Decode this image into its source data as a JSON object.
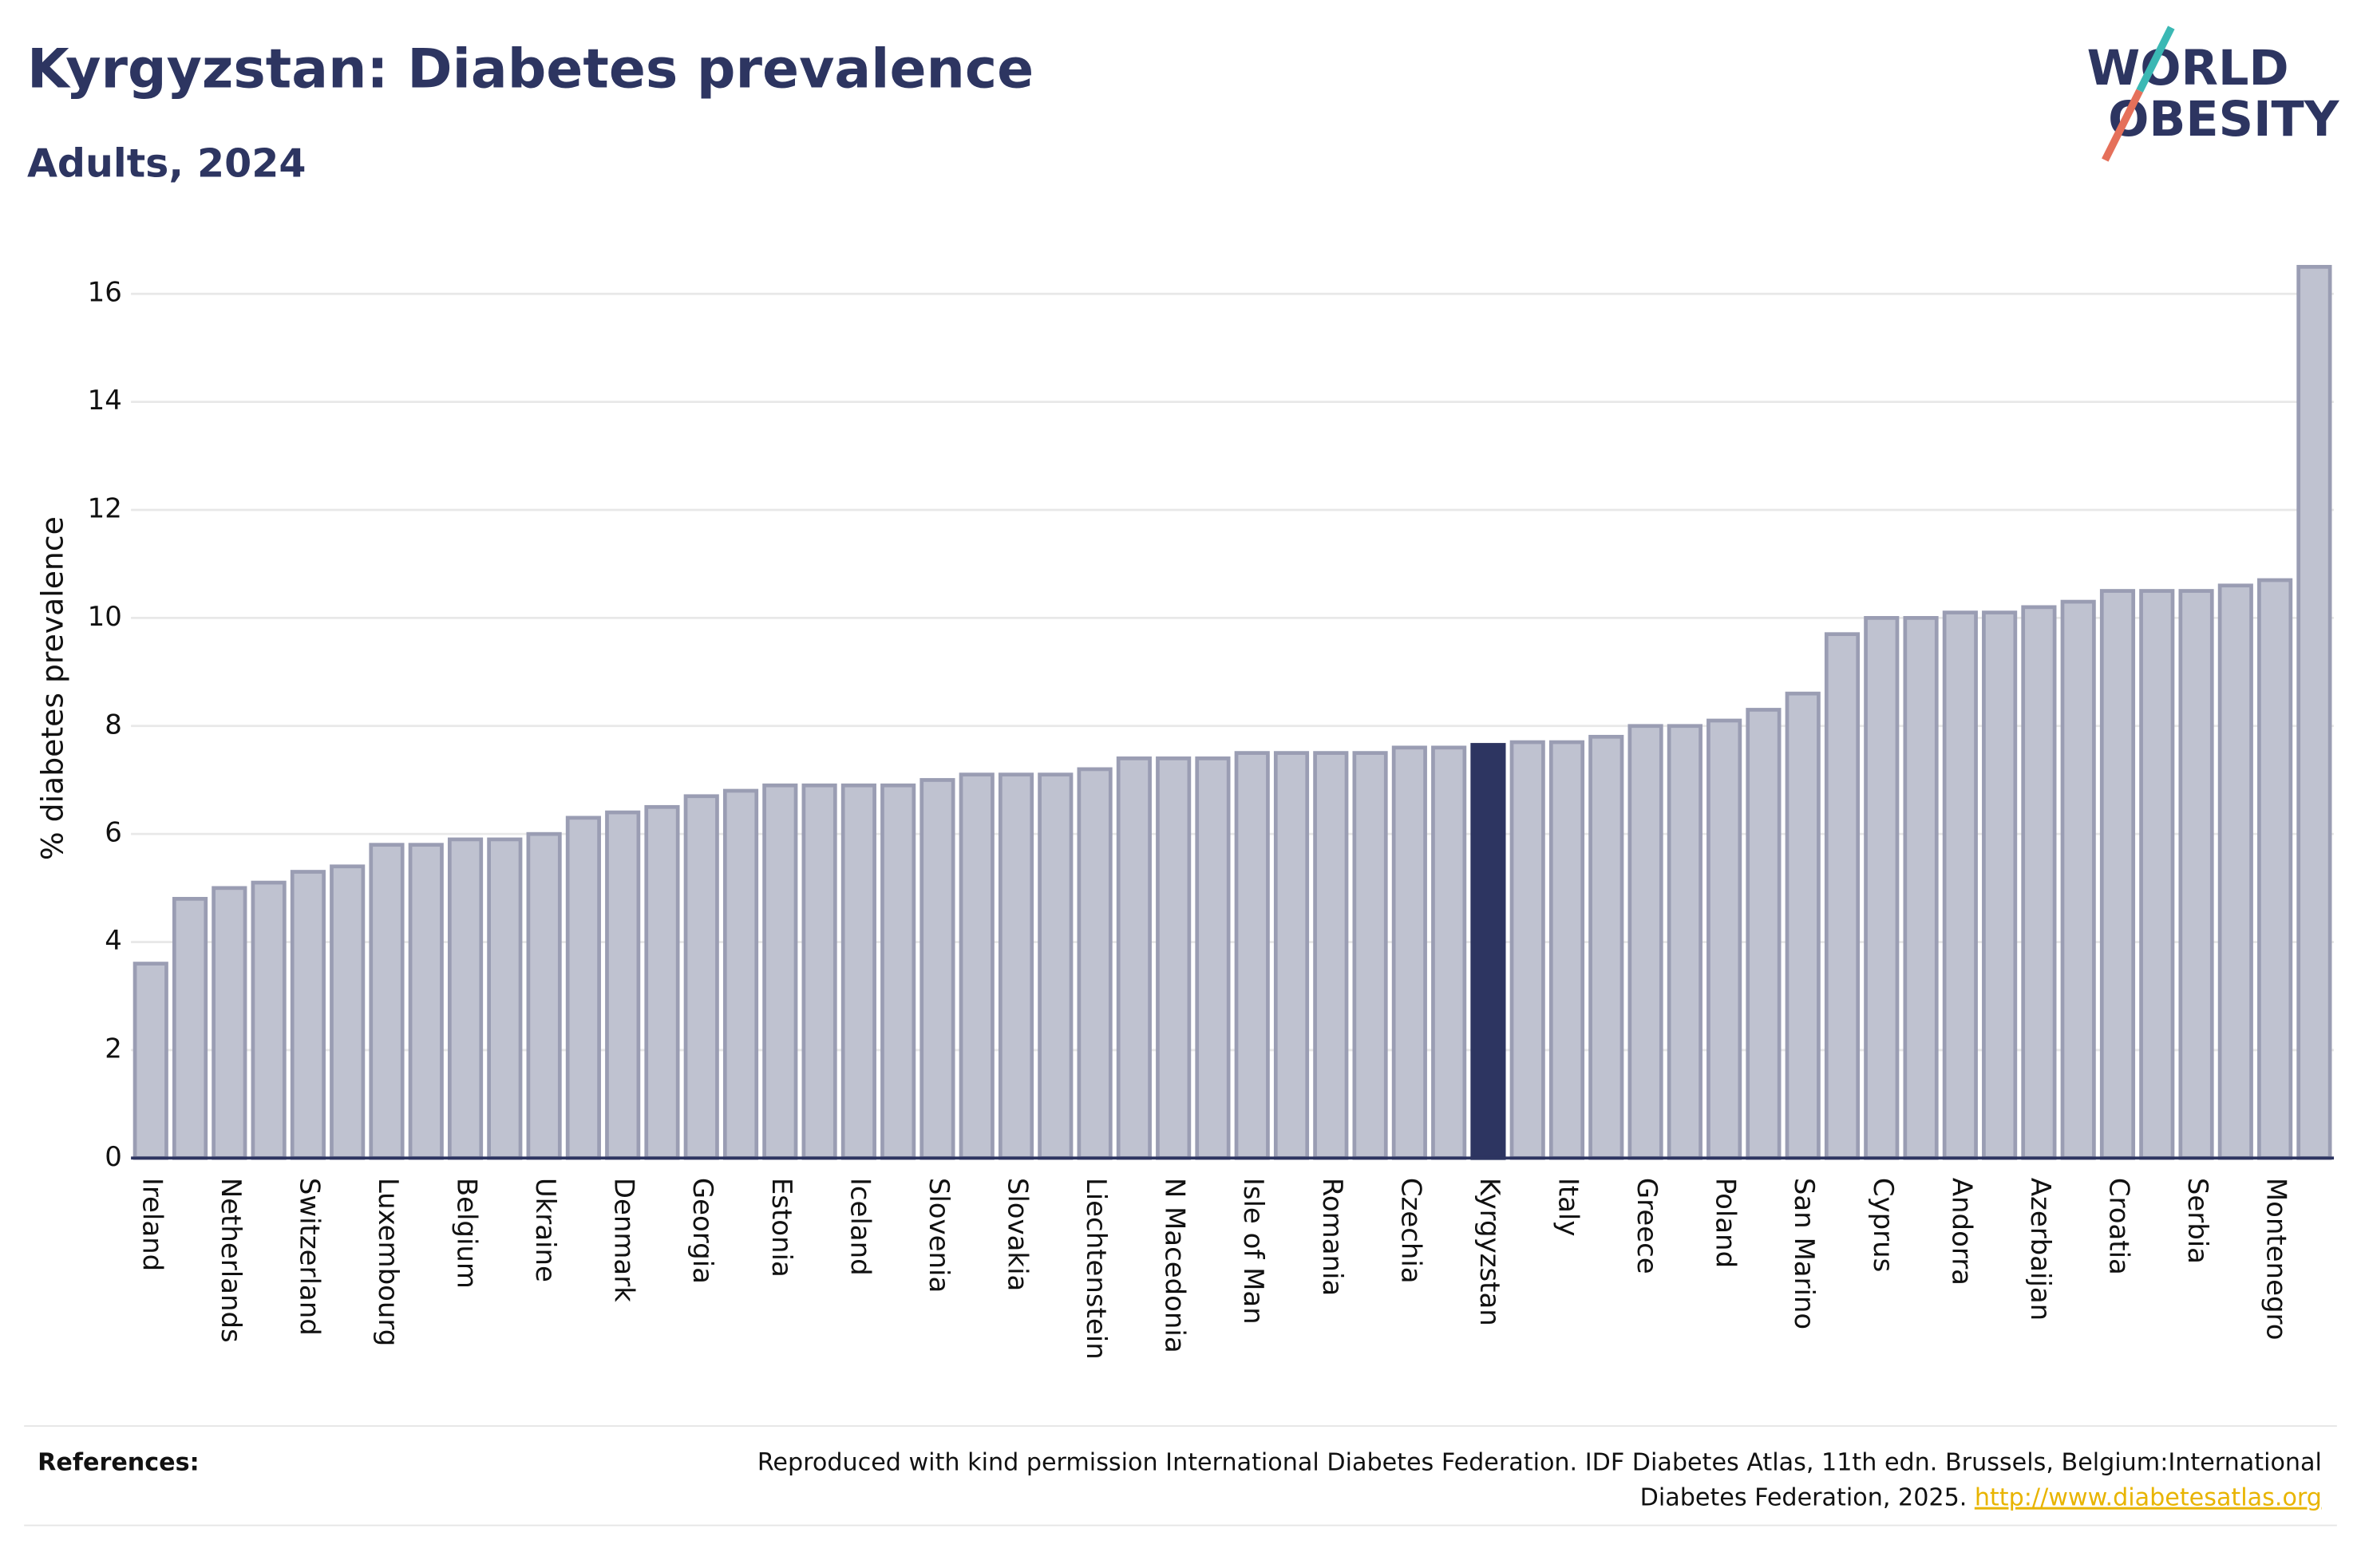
{
  "logo": [
    "WORLD",
    "OBESITY"
  ],
  "chart_data": {
    "type": "bar",
    "title": "Kyrgyzstan: Diabetes prevalence",
    "subtitle": "Adults, 2024",
    "y_label": "% diabetes prevalence",
    "categories": [
      "Ireland",
      null,
      "Netherlands",
      null,
      "Switzerland",
      null,
      "Luxembourg",
      null,
      "Belgium",
      null,
      "Ukraine",
      null,
      "Denmark",
      null,
      "Georgia",
      null,
      "Estonia",
      null,
      "Iceland",
      null,
      "Slovenia",
      null,
      "Slovakia",
      null,
      "Liechtenstein",
      null,
      "N Macedonia",
      null,
      "Isle of Man",
      null,
      "Romania",
      null,
      "Czechia",
      null,
      "Kyrgyzstan",
      null,
      "Italy",
      null,
      "Greece",
      null,
      "Poland",
      null,
      "San Marino",
      null,
      "Cyprus",
      null,
      "Andorra",
      null,
      "Azerbaijan",
      null,
      "Croatia",
      null,
      "Serbia",
      null,
      "Montenegro",
      null
    ],
    "values": [
      3.6,
      4.8,
      5.0,
      5.1,
      5.3,
      5.4,
      5.8,
      5.8,
      5.9,
      5.9,
      6.0,
      6.3,
      6.4,
      6.5,
      6.7,
      6.8,
      6.9,
      6.9,
      6.9,
      6.9,
      7.0,
      7.1,
      7.1,
      7.1,
      7.2,
      7.4,
      7.4,
      7.4,
      7.5,
      7.5,
      7.5,
      7.5,
      7.6,
      7.6,
      7.65,
      7.7,
      7.7,
      7.8,
      8.0,
      8.0,
      8.1,
      8.3,
      8.6,
      9.7,
      10.0,
      10.0,
      10.1,
      10.1,
      10.2,
      10.3,
      10.5,
      10.5,
      10.5,
      10.6,
      10.7,
      16.5
    ],
    "colors": [
      "#bfc2d0",
      "#bfc2d0",
      "#bfc2d0",
      "#bfc2d0",
      "#bfc2d0",
      "#bfc2d0",
      "#bfc2d0",
      "#bfc2d0",
      "#bfc2d0",
      "#bfc2d0",
      "#bfc2d0",
      "#bfc2d0",
      "#bfc2d0",
      "#bfc2d0",
      "#bfc2d0",
      "#bfc2d0",
      "#bfc2d0",
      "#bfc2d0",
      "#bfc2d0",
      "#bfc2d0",
      "#bfc2d0",
      "#bfc2d0",
      "#bfc2d0",
      "#bfc2d0",
      "#bfc2d0",
      "#bfc2d0",
      "#bfc2d0",
      "#bfc2d0",
      "#bfc2d0",
      "#bfc2d0",
      "#bfc2d0",
      "#bfc2d0",
      "#bfc2d0",
      "#bfc2d0",
      "#2d3561",
      "#bfc2d0",
      "#bfc2d0",
      "#bfc2d0",
      "#bfc2d0",
      "#bfc2d0",
      "#bfc2d0",
      "#bfc2d0",
      "#bfc2d0",
      "#bfc2d0",
      "#bfc2d0",
      "#bfc2d0",
      "#bfc2d0",
      "#bfc2d0",
      "#bfc2d0",
      "#bfc2d0",
      "#bfc2d0",
      "#bfc2d0",
      "#bfc2d0",
      "#bfc2d0",
      "#bfc2d0",
      "#bfc2d0"
    ],
    "ylim": [
      0,
      17
    ],
    "yticks": [
      0,
      2,
      4,
      6,
      8,
      10,
      12,
      14,
      16
    ],
    "grid": true
  },
  "references": {
    "label": "References:",
    "lines": [
      "Reproduced with kind permission International Diabetes Federation. IDF Diabetes Atlas, 11th edn. Brussels, Belgium:International",
      "Diabetes Federation, 2025."
    ],
    "link": "http://www.diabetesatlas.org"
  }
}
